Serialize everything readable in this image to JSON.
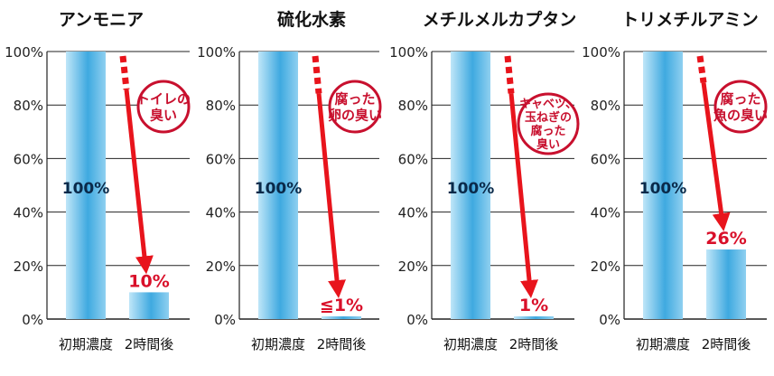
{
  "colors": {
    "arrow": "#e8141c",
    "bubble_border": "#c8102e",
    "bar_light": "#bfe6f8",
    "bar_dark": "#3fa9e0",
    "label_red": "#d9102a",
    "grid": "#222222"
  },
  "chart_data": [
    {
      "type": "bar",
      "title": "アンモニア",
      "categories": [
        "初期濃度",
        "2時間後"
      ],
      "values": [
        100,
        10
      ],
      "data_labels": [
        "100%",
        "10%"
      ],
      "y_ticks": [
        "0%",
        "20%",
        "40%",
        "60%",
        "80%",
        "100%"
      ],
      "ylim": [
        0,
        100
      ],
      "grid": true,
      "annotation": [
        "トイレの",
        "臭い"
      ]
    },
    {
      "type": "bar",
      "title": "硫化水素",
      "categories": [
        "初期濃度",
        "2時間後"
      ],
      "values": [
        100,
        1
      ],
      "data_labels": [
        "100%",
        "≦1%"
      ],
      "y_ticks": [
        "0%",
        "20%",
        "40%",
        "60%",
        "80%",
        "100%"
      ],
      "ylim": [
        0,
        100
      ],
      "grid": true,
      "annotation": [
        "腐った",
        "卵の臭い"
      ]
    },
    {
      "type": "bar",
      "title": "メチルメルカプタン",
      "categories": [
        "初期濃度",
        "2時間後"
      ],
      "values": [
        100,
        1
      ],
      "data_labels": [
        "100%",
        "1%"
      ],
      "y_ticks": [
        "0%",
        "20%",
        "40%",
        "60%",
        "80%",
        "100%"
      ],
      "ylim": [
        0,
        100
      ],
      "grid": true,
      "annotation": [
        "キャベツ、",
        "玉ねぎの",
        "腐った",
        "臭い"
      ]
    },
    {
      "type": "bar",
      "title": "トリメチルアミン",
      "categories": [
        "初期濃度",
        "2時間後"
      ],
      "values": [
        100,
        26
      ],
      "data_labels": [
        "100%",
        "26%"
      ],
      "y_ticks": [
        "0%",
        "20%",
        "40%",
        "60%",
        "80%",
        "100%"
      ],
      "ylim": [
        0,
        100
      ],
      "grid": true,
      "annotation": [
        "腐った",
        "魚の臭い"
      ]
    }
  ]
}
